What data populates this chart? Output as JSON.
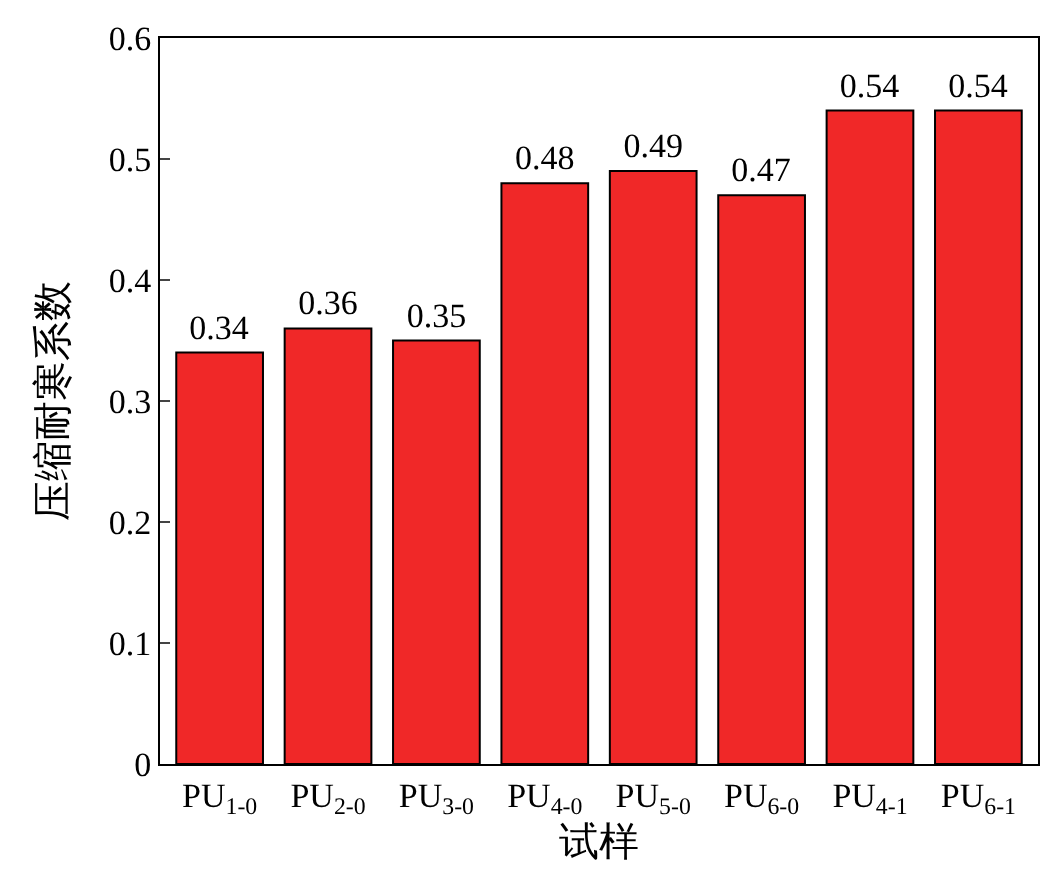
{
  "chart_data": {
    "type": "bar",
    "xlabel": "试样",
    "ylabel": "压缩耐寒系数",
    "categories": [
      "PU$_{1-0}$",
      "PU$_{2-0}$",
      "PU$_{3-0}$",
      "PU$_{4-0}$",
      "PU$_{5-0}$",
      "PU$_{6-0}$",
      "PU$_{4-1}$",
      "PU$_{6-1}$"
    ],
    "values": [
      0.34,
      0.36,
      0.35,
      0.48,
      0.49,
      0.47,
      0.54,
      0.54
    ],
    "color": "#f02828",
    "ylim": [
      0,
      0.6
    ],
    "yticks": [
      0,
      0.1,
      0.2,
      0.3,
      0.4,
      0.5,
      0.6
    ],
    "data_labels": true
  }
}
